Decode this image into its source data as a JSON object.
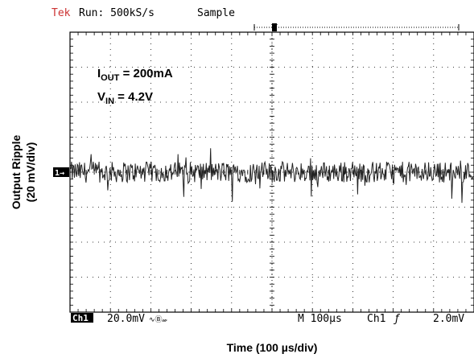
{
  "header": {
    "brand": "Tek",
    "run_text": "Run: 500kS/s",
    "mode": "Sample"
  },
  "annotations": {
    "iout_main": "I",
    "iout_sub": "OUT",
    "iout_value": " = 200mA",
    "vin_main": "V",
    "vin_sub": "IN",
    "vin_value": " = 4.2V"
  },
  "footer": {
    "channel": "Ch1",
    "volts_per_div": "20.0mV",
    "coupling_symbol": "∿Ⓑ𝓌",
    "timebase": "M 100µs",
    "trigger_source": "Ch1",
    "trigger_slope_symbol": "ƒ",
    "trigger_level": "2.0mV"
  },
  "ground_marker": "1→",
  "colors": {
    "brand": "#cc3333",
    "trace": "#222222",
    "grid": "#000000",
    "text": "#000000",
    "background": "#ffffff"
  },
  "chart_data": {
    "type": "line",
    "title": "",
    "xlabel": "Time (100 µs/div)",
    "ylabel_line1": "Output Ripple",
    "ylabel_line2": "(20 mV/div)",
    "xlim": [
      0,
      1000
    ],
    "ylim": [
      -80,
      80
    ],
    "x_divisions": 10,
    "y_divisions": 8,
    "grid": true,
    "series": [
      {
        "noise_amplitude_mv": 6,
        "spike_amplitude_mv": 14,
        "center_mv": 0
      }
    ]
  }
}
